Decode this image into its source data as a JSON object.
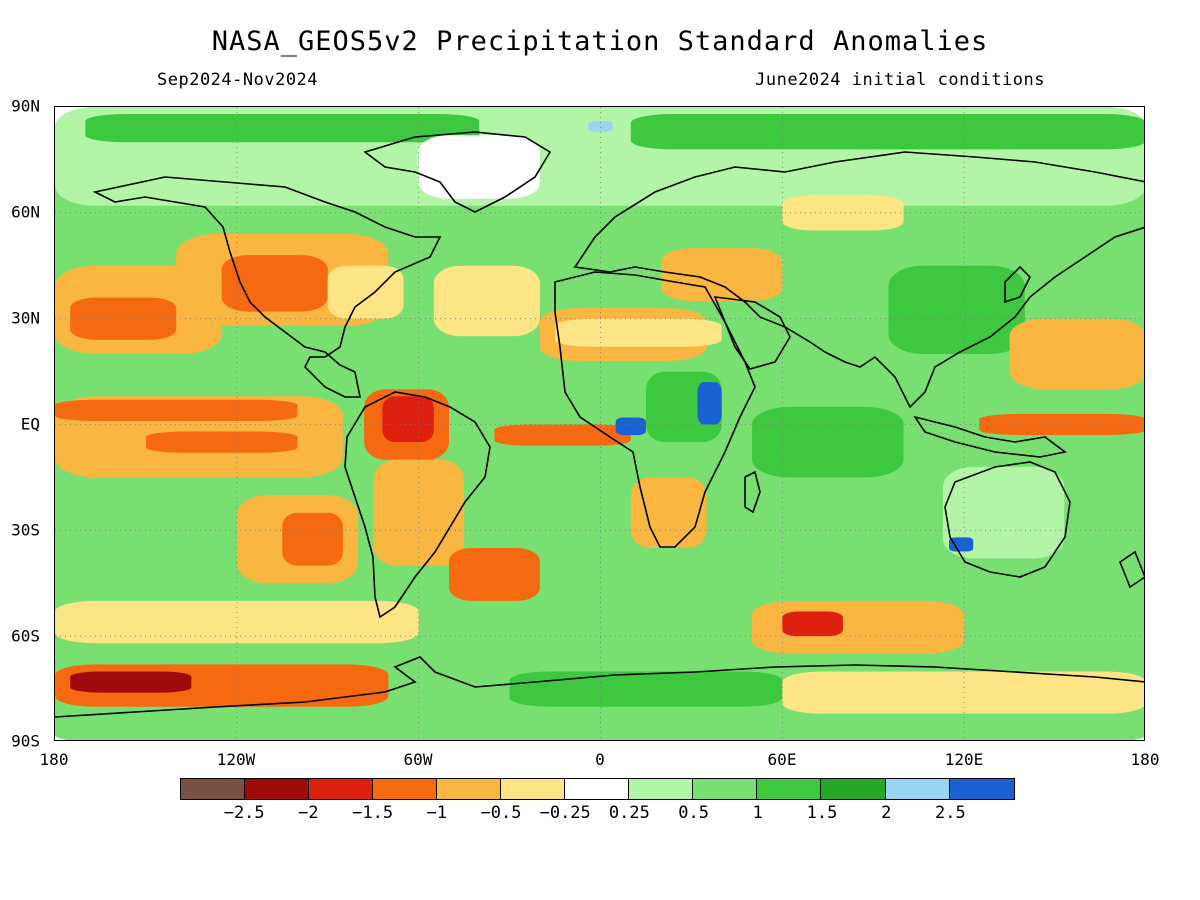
{
  "header": {
    "title": "NASA_GEOS5v2 Precipitation Standard Anomalies",
    "period": "Sep2024-Nov2024",
    "initial_conditions": "June2024 initial conditions"
  },
  "axes": {
    "lat_labels": [
      "90N",
      "60N",
      "30N",
      "EQ",
      "30S",
      "60S",
      "90S"
    ],
    "lon_labels": [
      "180",
      "120W",
      "60W",
      "0",
      "60E",
      "120E",
      "180"
    ]
  },
  "colorbar": {
    "colors": [
      "#7a5140",
      "#a00a0a",
      "#dd2010",
      "#f56a10",
      "#f9b640",
      "#fde484",
      "#ffffff",
      "#b3f5a6",
      "#78e070",
      "#3ec840",
      "#25a828",
      "#98d4f4",
      "#1a62d2"
    ],
    "labels": [
      "-2.5",
      "-2",
      "-1.5",
      "-1",
      "-0.5",
      "-0.25",
      "0.25",
      "0.5",
      "1",
      "1.5",
      "2",
      "2.5"
    ]
  },
  "map": {
    "projection": "equirectangular",
    "extent": {
      "lon": [
        -180,
        180
      ],
      "lat": [
        -90,
        90
      ]
    },
    "regions": [
      {
        "name": "global-wet-background",
        "color": "#78e070",
        "lon": [
          -180,
          180
        ],
        "lat": [
          -90,
          90
        ]
      },
      {
        "name": "arctic-light-green",
        "color": "#b3f5a6",
        "lon": [
          -180,
          180
        ],
        "lat": [
          62,
          90
        ]
      },
      {
        "name": "arctic-wet-band",
        "color": "#3ec840",
        "lon": [
          -170,
          -40
        ],
        "lat": [
          80,
          88
        ]
      },
      {
        "name": "arctic-wet-band-east",
        "color": "#3ec840",
        "lon": [
          10,
          180
        ],
        "lat": [
          78,
          88
        ]
      },
      {
        "name": "barents-wet-patch",
        "color": "#98d4f4",
        "lon": [
          -4,
          4
        ],
        "lat": [
          83,
          86
        ]
      },
      {
        "name": "greenland-dry",
        "color": "#ffffff",
        "lon": [
          -60,
          -20
        ],
        "lat": [
          64,
          82
        ]
      },
      {
        "name": "north-america-dry",
        "color": "#f9b640",
        "lon": [
          -140,
          -70
        ],
        "lat": [
          28,
          54
        ]
      },
      {
        "name": "north-america-dry-core",
        "color": "#f56a10",
        "lon": [
          -125,
          -90
        ],
        "lat": [
          32,
          48
        ]
      },
      {
        "name": "eastern-us-dry",
        "color": "#fde484",
        "lon": [
          -90,
          -65
        ],
        "lat": [
          30,
          45
        ]
      },
      {
        "name": "north-pacific-dry",
        "color": "#f9b640",
        "lon": [
          -180,
          -125
        ],
        "lat": [
          20,
          45
        ]
      },
      {
        "name": "north-pacific-dry-core",
        "color": "#f56a10",
        "lon": [
          -175,
          -140
        ],
        "lat": [
          24,
          36
        ]
      },
      {
        "name": "north-atlantic-mixed",
        "color": "#fde484",
        "lon": [
          -55,
          -20
        ],
        "lat": [
          25,
          45
        ]
      },
      {
        "name": "sahara-dry",
        "color": "#f9b640",
        "lon": [
          -20,
          35
        ],
        "lat": [
          18,
          33
        ]
      },
      {
        "name": "sahara-mixed",
        "color": "#fde484",
        "lon": [
          -15,
          40
        ],
        "lat": [
          22,
          30
        ]
      },
      {
        "name": "eastern-europe-dry",
        "color": "#f9b640",
        "lon": [
          20,
          60
        ],
        "lat": [
          35,
          50
        ]
      },
      {
        "name": "siberia-dry",
        "color": "#fde484",
        "lon": [
          60,
          100
        ],
        "lat": [
          55,
          65
        ]
      },
      {
        "name": "east-asia-wet",
        "color": "#3ec840",
        "lon": [
          95,
          140
        ],
        "lat": [
          20,
          45
        ]
      },
      {
        "name": "west-pacific-dry",
        "color": "#f9b640",
        "lon": [
          135,
          180
        ],
        "lat": [
          10,
          30
        ]
      },
      {
        "name": "equatorial-pacific-dry",
        "color": "#f9b640",
        "lon": [
          -180,
          -85
        ],
        "lat": [
          -15,
          8
        ]
      },
      {
        "name": "equatorial-pacific-dry-core",
        "color": "#f56a10",
        "lon": [
          -180,
          -100
        ],
        "lat": [
          1,
          7
        ]
      },
      {
        "name": "equatorial-pacific-dry-south",
        "color": "#f56a10",
        "lon": [
          -150,
          -100
        ],
        "lat": [
          -8,
          -2
        ]
      },
      {
        "name": "west-equatorial-pacific-dry",
        "color": "#f56a10",
        "lon": [
          125,
          180
        ],
        "lat": [
          -3,
          3
        ]
      },
      {
        "name": "amazon-dry",
        "color": "#f56a10",
        "lon": [
          -78,
          -50
        ],
        "lat": [
          -10,
          10
        ]
      },
      {
        "name": "amazon-dry-core",
        "color": "#dd2010",
        "lon": [
          -72,
          -55
        ],
        "lat": [
          -5,
          8
        ]
      },
      {
        "name": "south-america-dry",
        "color": "#f9b640",
        "lon": [
          -75,
          -45
        ],
        "lat": [
          -40,
          -10
        ]
      },
      {
        "name": "equatorial-atlantic-dry",
        "color": "#f56a10",
        "lon": [
          -35,
          10
        ],
        "lat": [
          -6,
          0
        ]
      },
      {
        "name": "southeast-pacific-dry",
        "color": "#f9b640",
        "lon": [
          -120,
          -80
        ],
        "lat": [
          -45,
          -20
        ]
      },
      {
        "name": "southeast-pacific-dry-core",
        "color": "#f56a10",
        "lon": [
          -105,
          -85
        ],
        "lat": [
          -40,
          -25
        ]
      },
      {
        "name": "southwest-atlantic-dry",
        "color": "#f56a10",
        "lon": [
          -50,
          -20
        ],
        "lat": [
          -50,
          -35
        ]
      },
      {
        "name": "southern-africa-dry",
        "color": "#f9b640",
        "lon": [
          10,
          35
        ],
        "lat": [
          -35,
          -15
        ]
      },
      {
        "name": "central-africa-wet",
        "color": "#3ec840",
        "lon": [
          15,
          40
        ],
        "lat": [
          -5,
          15
        ]
      },
      {
        "name": "east-africa-very-wet",
        "color": "#1a62d2",
        "lon": [
          32,
          40
        ],
        "lat": [
          0,
          12
        ]
      },
      {
        "name": "west-africa-very-wet",
        "color": "#1a62d2",
        "lon": [
          5,
          15
        ],
        "lat": [
          -3,
          2
        ]
      },
      {
        "name": "indian-ocean-wet",
        "color": "#3ec840",
        "lon": [
          50,
          100
        ],
        "lat": [
          -15,
          5
        ]
      },
      {
        "name": "australia-mixed",
        "color": "#b3f5a6",
        "lon": [
          113,
          153
        ],
        "lat": [
          -38,
          -12
        ]
      },
      {
        "name": "southwest-australia-wet",
        "color": "#1a62d2",
        "lon": [
          115,
          123
        ],
        "lat": [
          -36,
          -32
        ]
      },
      {
        "name": "southern-ocean-dry",
        "color": "#f9b640",
        "lon": [
          50,
          120
        ],
        "lat": [
          -65,
          -50
        ]
      },
      {
        "name": "southern-ocean-dry-core",
        "color": "#dd2010",
        "lon": [
          60,
          80
        ],
        "lat": [
          -60,
          -53
        ]
      },
      {
        "name": "southern-ocean-mixed",
        "color": "#fde484",
        "lon": [
          -180,
          -60
        ],
        "lat": [
          -62,
          -50
        ]
      },
      {
        "name": "ross-sea-dry",
        "color": "#f56a10",
        "lon": [
          -180,
          -70
        ],
        "lat": [
          -80,
          -68
        ]
      },
      {
        "name": "ross-sea-dry-core",
        "color": "#a00a0a",
        "lon": [
          -175,
          -135
        ],
        "lat": [
          -76,
          -70
        ]
      },
      {
        "name": "antarctica-wet",
        "color": "#3ec840",
        "lon": [
          -30,
          60
        ],
        "lat": [
          -80,
          -70
        ]
      },
      {
        "name": "east-antarctica-mixed",
        "color": "#fde484",
        "lon": [
          60,
          180
        ],
        "lat": [
          -82,
          -70
        ]
      },
      {
        "name": "south-pole-wet",
        "color": "#78e070",
        "lon": [
          -180,
          180
        ],
        "lat": [
          -90,
          -82
        ]
      }
    ]
  }
}
